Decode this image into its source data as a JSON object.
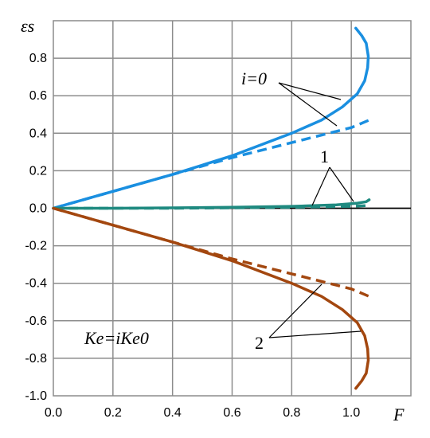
{
  "chart_data": {
    "type": "line",
    "xlabel": "F",
    "ylabel": "εs",
    "xlim": [
      0,
      1.2
    ],
    "ylim": [
      -1.0,
      1.0
    ],
    "grid": true,
    "xticks": [
      "0.0",
      "0.2",
      "0.4",
      "0.6",
      "0.8",
      "1.0"
    ],
    "yticks": [
      "-1.0",
      "-0.8",
      "-0.6",
      "-0.4",
      "-0.2",
      "0.0",
      "0.2",
      "0.4",
      "0.6",
      "0.8"
    ],
    "annotations": {
      "i0": "i=0",
      "one": "1",
      "two": "2",
      "formula": "Ke=iKe0"
    },
    "colors": {
      "i0": "#1a8fe0",
      "one": "#1f8a80",
      "two": "#a3470f"
    },
    "series": [
      {
        "group": "i=0",
        "style": "solid",
        "x": [
          0,
          0.2,
          0.4,
          0.6,
          0.8,
          0.9,
          0.97,
          1.02,
          1.045,
          1.055,
          1.057,
          1.05,
          1.035,
          1.015
        ],
        "y": [
          0,
          0.09,
          0.18,
          0.28,
          0.4,
          0.47,
          0.54,
          0.61,
          0.68,
          0.75,
          0.81,
          0.88,
          0.92,
          0.96
        ]
      },
      {
        "group": "i=0",
        "style": "dashed",
        "x": [
          0,
          0.2,
          0.4,
          0.6,
          0.8,
          1.0,
          1.06
        ],
        "y": [
          0,
          0.09,
          0.18,
          0.27,
          0.35,
          0.43,
          0.47
        ]
      },
      {
        "group": "1",
        "style": "solid",
        "x": [
          0,
          0.2,
          0.4,
          0.6,
          0.8,
          0.95,
          1.02,
          1.05,
          1.06
        ],
        "y": [
          0,
          0.0,
          0.002,
          0.005,
          0.01,
          0.018,
          0.027,
          0.035,
          0.045
        ]
      },
      {
        "group": "1",
        "style": "dashed",
        "x": [
          0,
          0.2,
          0.4,
          0.6,
          0.8,
          1.0,
          1.06
        ],
        "y": [
          0,
          0.0,
          0.0,
          0.002,
          0.005,
          0.01,
          0.015
        ]
      },
      {
        "group": "2",
        "style": "solid",
        "x": [
          0,
          0.2,
          0.4,
          0.6,
          0.8,
          0.9,
          0.97,
          1.02,
          1.045,
          1.055,
          1.057,
          1.05,
          1.035,
          1.015
        ],
        "y": [
          0,
          -0.09,
          -0.18,
          -0.28,
          -0.4,
          -0.47,
          -0.54,
          -0.61,
          -0.68,
          -0.75,
          -0.81,
          -0.88,
          -0.92,
          -0.96
        ]
      },
      {
        "group": "2",
        "style": "dashed",
        "x": [
          0,
          0.2,
          0.4,
          0.6,
          0.8,
          1.0,
          1.06
        ],
        "y": [
          0,
          -0.09,
          -0.18,
          -0.27,
          -0.35,
          -0.43,
          -0.47
        ]
      }
    ]
  }
}
